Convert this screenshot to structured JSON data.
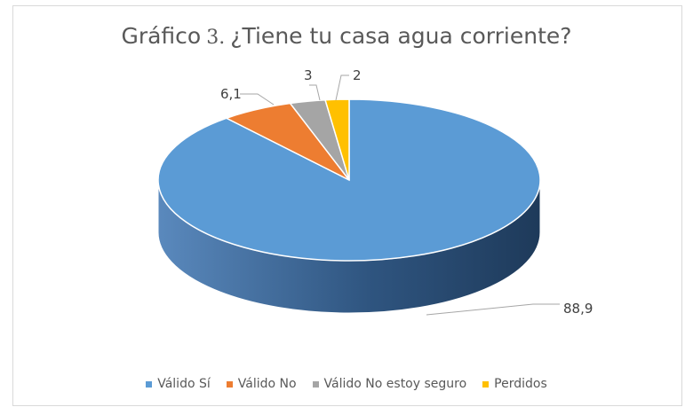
{
  "chart_data": {
    "type": "pie",
    "title_prefix": "Gráfico",
    "title_number": "3.",
    "title_question": "¿Tiene tu casa agua corriente?",
    "categories": [
      "Válido Sí",
      "Válido No",
      "Válido No estoy seguro",
      "Perdidos"
    ],
    "values": [
      88.9,
      6.1,
      3,
      2
    ],
    "data_labels": [
      "88,9",
      "6,1",
      "3",
      "2"
    ],
    "colors": [
      "#5b9bd5",
      "#ed7d31",
      "#a5a5a5",
      "#ffc000"
    ],
    "legend_position": "bottom",
    "style": "3d"
  }
}
